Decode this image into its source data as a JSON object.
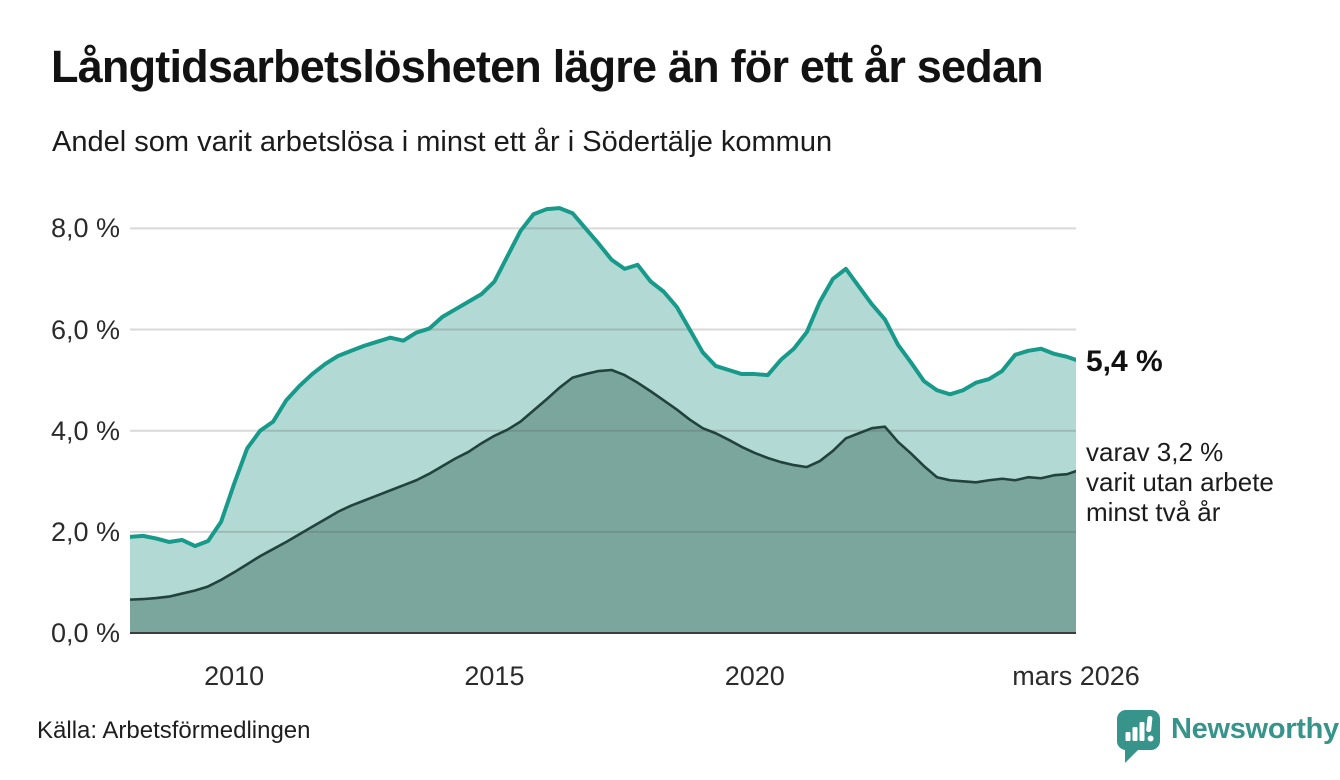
{
  "header": {
    "title": "Långtidsarbetslösheten lägre än för ett år sedan",
    "subtitle": "Andel som varit arbetslösa i minst ett år i Södertälje kommun"
  },
  "annotations": {
    "latest": "5,4 %",
    "secondary_lines": [
      "varav 3,2 %",
      "varit utan arbete",
      "minst två år"
    ]
  },
  "source": {
    "label": "Källa: Arbetsförmedlingen"
  },
  "brand": {
    "name": "Newsworthy",
    "color": "#37948a",
    "icon": "bar-chart-speech-bubble-icon"
  },
  "chart_data": {
    "type": "area",
    "title": "Långtidsarbetslösheten lägre än för ett år sedan",
    "subtitle": "Andel som varit arbetslösa i minst ett år i Södertälje kommun",
    "xlabel": "",
    "ylabel": "",
    "x_unit": "decimal_year",
    "xlim": [
      2008,
      2026.17
    ],
    "ylim": [
      0,
      8.7
    ],
    "grid": true,
    "gridline_values": [
      2,
      4,
      6,
      8
    ],
    "x": [
      2008,
      2008.25,
      2008.5,
      2008.75,
      2009,
      2009.25,
      2009.5,
      2009.75,
      2010,
      2010.25,
      2010.5,
      2010.75,
      2011,
      2011.25,
      2011.5,
      2011.75,
      2012,
      2012.25,
      2012.5,
      2012.75,
      2013,
      2013.25,
      2013.5,
      2013.75,
      2014,
      2014.25,
      2014.5,
      2014.75,
      2015,
      2015.25,
      2015.5,
      2015.75,
      2016,
      2016.25,
      2016.5,
      2016.75,
      2017,
      2017.25,
      2017.5,
      2017.75,
      2018,
      2018.25,
      2018.5,
      2018.75,
      2019,
      2019.25,
      2019.5,
      2019.75,
      2020,
      2020.25,
      2020.5,
      2020.75,
      2021,
      2021.25,
      2021.5,
      2021.75,
      2022,
      2022.25,
      2022.5,
      2022.75,
      2023,
      2023.25,
      2023.5,
      2023.75,
      2024,
      2024.25,
      2024.5,
      2024.75,
      2025,
      2025.25,
      2025.5,
      2025.75,
      2026,
      2026.17
    ],
    "series": [
      {
        "name": "Andel arbetslösa minst ett år",
        "line_color": "#189a8a",
        "fill_color": "#b2d9d3",
        "line_width": 4,
        "end_label": "5,4 %",
        "values": [
          1.9,
          1.92,
          1.87,
          1.8,
          1.84,
          1.72,
          1.82,
          2.2,
          2.95,
          3.65,
          4.0,
          4.18,
          4.6,
          4.88,
          5.12,
          5.32,
          5.48,
          5.58,
          5.68,
          5.76,
          5.84,
          5.78,
          5.94,
          6.02,
          6.25,
          6.4,
          6.55,
          6.7,
          6.95,
          7.45,
          7.95,
          8.28,
          8.38,
          8.4,
          8.3,
          8.0,
          7.7,
          7.38,
          7.2,
          7.28,
          6.95,
          6.75,
          6.45,
          6.0,
          5.55,
          5.28,
          5.2,
          5.12,
          5.12,
          5.1,
          5.4,
          5.62,
          5.95,
          6.55,
          7.0,
          7.2,
          6.85,
          6.5,
          6.2,
          5.7,
          5.35,
          4.98,
          4.8,
          4.72,
          4.8,
          4.95,
          5.02,
          5.18,
          5.5,
          5.58,
          5.62,
          5.52,
          5.46,
          5.4
        ]
      },
      {
        "name": "varav arbetslösa minst två år",
        "line_color": "#22423d",
        "fill_color": "#7ba69e",
        "line_width": 2.6,
        "end_label": "varav 3,2 % varit utan arbete minst två år",
        "values": [
          0.66,
          0.67,
          0.69,
          0.72,
          0.78,
          0.84,
          0.92,
          1.05,
          1.2,
          1.36,
          1.52,
          1.66,
          1.8,
          1.95,
          2.1,
          2.25,
          2.4,
          2.52,
          2.62,
          2.72,
          2.82,
          2.92,
          3.02,
          3.15,
          3.3,
          3.45,
          3.58,
          3.75,
          3.9,
          4.02,
          4.18,
          4.4,
          4.62,
          4.85,
          5.05,
          5.12,
          5.18,
          5.2,
          5.1,
          4.95,
          4.78,
          4.6,
          4.42,
          4.22,
          4.05,
          3.95,
          3.82,
          3.68,
          3.56,
          3.46,
          3.38,
          3.32,
          3.28,
          3.4,
          3.6,
          3.85,
          3.95,
          4.05,
          4.08,
          3.78,
          3.55,
          3.3,
          3.08,
          3.02,
          3.0,
          2.98,
          3.02,
          3.05,
          3.02,
          3.08,
          3.06,
          3.12,
          3.14,
          3.2
        ]
      }
    ],
    "yticks": [
      {
        "value": 0,
        "label": "0,0 %"
      },
      {
        "value": 2,
        "label": "2,0 %"
      },
      {
        "value": 4,
        "label": "4,0 %"
      },
      {
        "value": 6,
        "label": "6,0 %"
      },
      {
        "value": 8,
        "label": "8,0 %"
      }
    ],
    "xticks": [
      {
        "value": 2010,
        "label": "2010"
      },
      {
        "value": 2015,
        "label": "2015"
      },
      {
        "value": 2020,
        "label": "2020"
      },
      {
        "value": 2026.17,
        "label": "mars 2026"
      }
    ],
    "legend_position": "none",
    "axis_line_color": "#3d3d3d",
    "gridline_color": "rgba(80,80,80,0.22)"
  }
}
